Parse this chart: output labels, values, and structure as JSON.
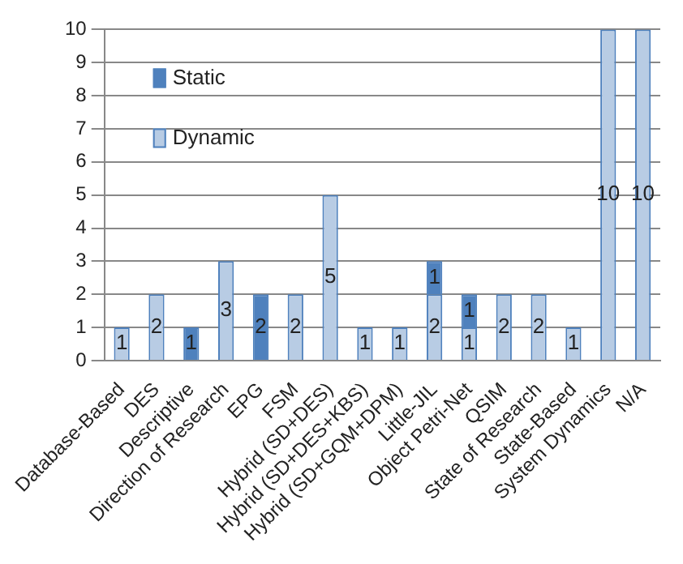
{
  "chart_data": {
    "type": "bar",
    "stacked": true,
    "categories": [
      "Database-Based",
      "DES",
      "Descriptive",
      "Direction of Research",
      "EPG",
      "FSM",
      "Hybrid (SD+DES)",
      "Hybrid (SD+DES+KBS)",
      "Hybrid (SD+GQM+DPM)",
      "Little-JIL",
      "Object Petri-Net",
      "QSIM",
      "State of Research",
      "State-Based",
      "System Dynamics",
      "N/A"
    ],
    "series": [
      {
        "name": "Dynamic",
        "color": "#b8cce4",
        "values": [
          1,
          2,
          null,
          3,
          null,
          2,
          5,
          1,
          1,
          2,
          1,
          2,
          2,
          1,
          10,
          10
        ]
      },
      {
        "name": "Static",
        "color": "#4f81bd",
        "values": [
          null,
          null,
          1,
          null,
          2,
          null,
          null,
          null,
          null,
          1,
          1,
          null,
          null,
          null,
          null,
          null
        ]
      }
    ],
    "ylim": [
      0,
      10
    ],
    "yticks": [
      0,
      1,
      2,
      3,
      4,
      5,
      6,
      7,
      8,
      9,
      10
    ],
    "grid": "y",
    "legend": "top left",
    "data_labels": true
  }
}
